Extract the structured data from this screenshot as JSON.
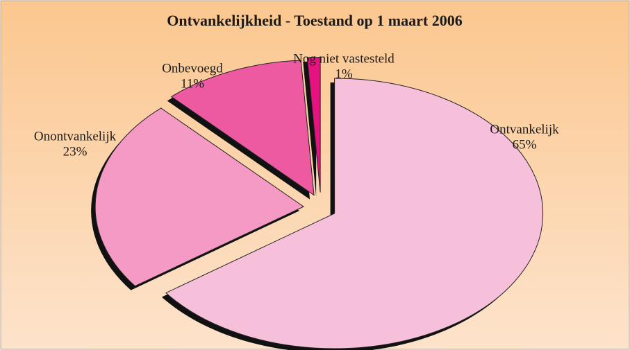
{
  "chart_data": {
    "type": "pie",
    "title": "Ontvankelijkheid - Toestand op 1 maart 2006",
    "categories": [
      "Ontvankelijk",
      "Onontvankelijk",
      "Onbevoegd",
      "Nog niet vastesteld"
    ],
    "values": [
      65,
      23,
      11,
      1
    ],
    "value_labels": [
      "65%",
      "23%",
      "11%",
      "1%"
    ],
    "colors": [
      "#f7c0da",
      "#f49ac4",
      "#ee5aa2",
      "#e5127f"
    ]
  }
}
